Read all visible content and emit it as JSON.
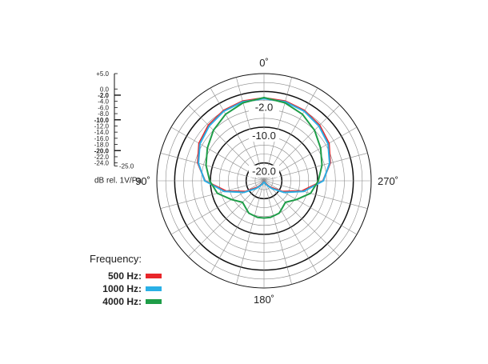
{
  "chart_data": {
    "type": "polar",
    "title": "",
    "angle_labels": [
      {
        "deg": 0,
        "text": "0˚"
      },
      {
        "deg": 90,
        "text": "90˚"
      },
      {
        "deg": 180,
        "text": "180˚"
      },
      {
        "deg": 270,
        "text": "270˚"
      }
    ],
    "angle_direction": "counterclockwise",
    "radial_range_db": [
      -25,
      5
    ],
    "radial_ring_labels": [
      {
        "value": -2.0,
        "text": "-2.0"
      },
      {
        "value": -10.0,
        "text": "-10.0"
      },
      {
        "value": -20.0,
        "text": "-20.0"
      }
    ],
    "bold_rings_db": [
      -20,
      -10,
      0
    ],
    "scale": {
      "ticks": [
        {
          "value": 5,
          "text": "+5.0",
          "bold": false
        },
        {
          "value": 0,
          "text": "0.0",
          "bold": false
        },
        {
          "value": -2,
          "text": "-2.0",
          "bold": true
        },
        {
          "value": -4,
          "text": "-4.0",
          "bold": false
        },
        {
          "value": -6,
          "text": "-6.0",
          "bold": false
        },
        {
          "value": -8,
          "text": "-8.0",
          "bold": false
        },
        {
          "value": -10,
          "text": "-10.0",
          "bold": true
        },
        {
          "value": -12,
          "text": "-12.0",
          "bold": false
        },
        {
          "value": -14,
          "text": "-14.0",
          "bold": false
        },
        {
          "value": -16,
          "text": "-16.0",
          "bold": false
        },
        {
          "value": -18,
          "text": "-18.0",
          "bold": false
        },
        {
          "value": -20,
          "text": "-20.0",
          "bold": true
        },
        {
          "value": -22,
          "text": "-22.0",
          "bold": false
        },
        {
          "value": -24,
          "text": "-24.0",
          "bold": false
        }
      ],
      "end_label": "-25.0",
      "unit_label": "dB rel. 1V/Pa"
    },
    "legend_title": "Frequency:",
    "series": [
      {
        "name": "500 Hz:",
        "color": "#e8262a",
        "angles": [
          0,
          15,
          30,
          45,
          60,
          75,
          90,
          105,
          120,
          135,
          150,
          165,
          180
        ],
        "values_db": [
          -1.8,
          -1.9,
          -2.3,
          -3.0,
          -4.0,
          -5.8,
          -8.5,
          -14,
          -19,
          -22.5,
          -24,
          -24.6,
          -24.8
        ]
      },
      {
        "name": "1000 Hz:",
        "color": "#2ab0e6",
        "angles": [
          0,
          15,
          30,
          45,
          60,
          75,
          90,
          105,
          120,
          135,
          150,
          165,
          180
        ],
        "values_db": [
          -2.0,
          -2.1,
          -2.5,
          -3.3,
          -4.3,
          -6.0,
          -8.4,
          -13.5,
          -18.5,
          -22,
          -23.8,
          -24.5,
          -24.7
        ]
      },
      {
        "name": "4000 Hz:",
        "color": "#1e9d48",
        "angles": [
          0,
          15,
          30,
          45,
          60,
          75,
          90,
          105,
          120,
          135,
          150,
          155,
          165,
          170,
          180
        ],
        "values_db": [
          -1.7,
          -2.4,
          -3.5,
          -5.0,
          -6.7,
          -8.2,
          -9.8,
          -11.5,
          -14.5,
          -16.5,
          -15.5,
          -15.0,
          -14.8,
          -14.6,
          -14.6
        ]
      }
    ]
  }
}
